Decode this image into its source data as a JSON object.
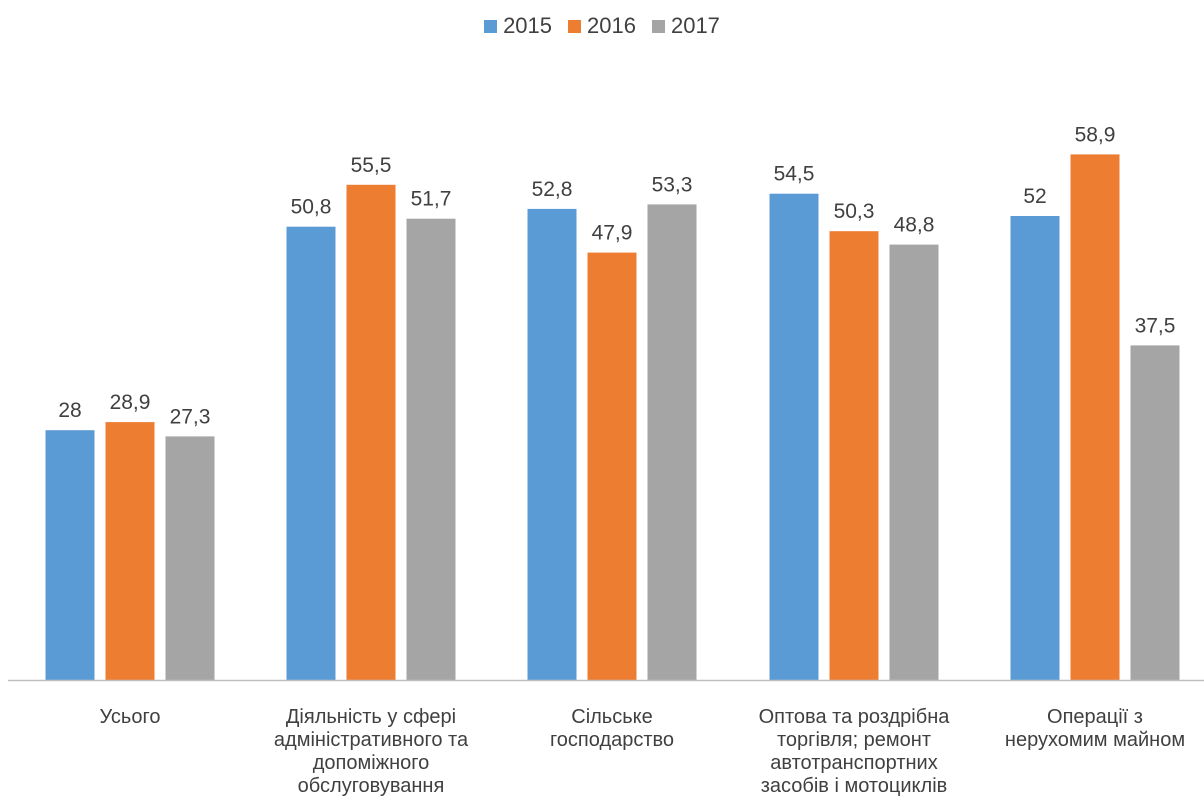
{
  "chart_data": {
    "type": "bar",
    "title": "",
    "xlabel": "",
    "ylabel": "",
    "ylim": [
      0,
      65
    ],
    "grid": false,
    "legend_position": "top",
    "categories": [
      "Усього",
      "Діяльність у сфері\nадміністративного та\nдопоміжного\nобслуговування",
      "Сільське\nгосподарство",
      "Оптова та роздрібна\nторгівля; ремонт\nавтотранспортних\nзасобів і мотоциклів",
      "Операції з\nнерухомим майном"
    ],
    "series": [
      {
        "name": "2015",
        "color": "#5B9BD5",
        "values": [
          28,
          50.8,
          52.8,
          54.5,
          52
        ],
        "labels": [
          "28",
          "50,8",
          "52,8",
          "54,5",
          "52"
        ]
      },
      {
        "name": "2016",
        "color": "#ED7D31",
        "values": [
          28.9,
          55.5,
          47.9,
          50.3,
          58.9
        ],
        "labels": [
          "28,9",
          "55,5",
          "47,9",
          "50,3",
          "58,9"
        ]
      },
      {
        "name": "2017",
        "color": "#A5A5A5",
        "values": [
          27.3,
          51.7,
          53.3,
          48.8,
          37.5
        ],
        "labels": [
          "27,3",
          "51,7",
          "53,3",
          "48,8",
          "37,5"
        ]
      }
    ]
  }
}
